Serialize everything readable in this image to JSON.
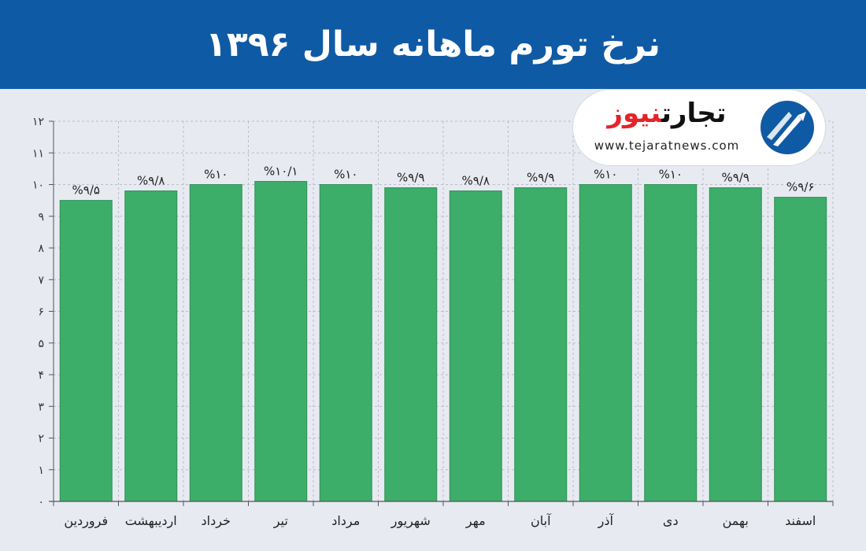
{
  "chart_data": {
    "type": "bar",
    "title": "نرخ تورم ماهانه سال ۱۳۹۶",
    "categories": [
      "فروردین",
      "اردیبهشت",
      "خرداد",
      "تیر",
      "مرداد",
      "شهریور",
      "مهر",
      "آبان",
      "آذر",
      "دی",
      "بهمن",
      "اسفند"
    ],
    "values": [
      9.5,
      9.8,
      10,
      10.1,
      10,
      9.9,
      9.8,
      9.9,
      10,
      10,
      9.9,
      9.6
    ],
    "data_labels": [
      "%۹/۵",
      "%۹/۸",
      "%۱۰",
      "%۱۰/۱",
      "%۱۰",
      "%۹/۹",
      "%۹/۸",
      "%۹/۹",
      "%۱۰",
      "%۱۰",
      "%۹/۹",
      "%۹/۶"
    ],
    "y_ticks": [
      0,
      1,
      2,
      3,
      4,
      5,
      6,
      7,
      8,
      9,
      10,
      11,
      12
    ],
    "y_tick_labels": [
      "۰",
      "۱",
      "۲",
      "۳",
      "۴",
      "۵",
      "۶",
      "۷",
      "۸",
      "۹",
      "۱۰",
      "۱۱",
      "۱۲"
    ],
    "ylim": [
      0,
      12
    ],
    "xlabel": "",
    "ylabel": "",
    "grid": true,
    "colors": {
      "bar": "#3dae6a",
      "bar_stroke": "#2e8f54",
      "grid": "#b9bdc8",
      "header": "#0f5aa5"
    }
  },
  "logo": {
    "name_black": "تجارت",
    "name_red": "نیوز",
    "url": "www.tejaratnews.com"
  }
}
